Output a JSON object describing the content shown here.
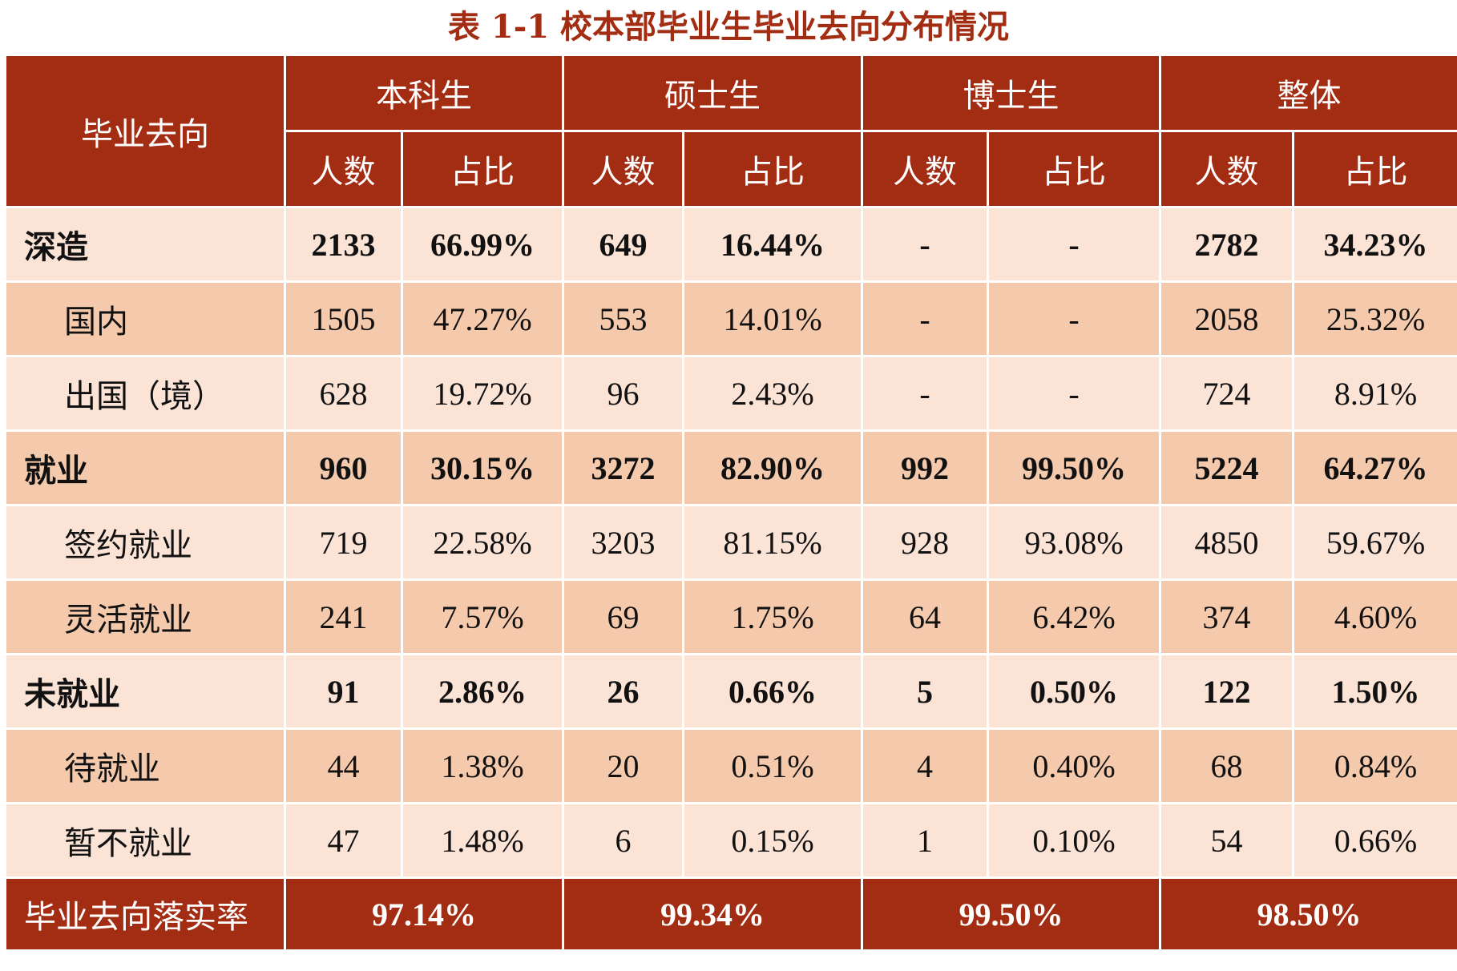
{
  "title": "表 1-1 校本部毕业生毕业去向分布情况",
  "header": {
    "row_label": "毕业去向",
    "groups": [
      "本科生",
      "硕士生",
      "博士生",
      "整体"
    ],
    "sub": [
      "人数",
      "占比"
    ]
  },
  "rows": [
    {
      "label": "深造",
      "level": "main",
      "cells": [
        "2133",
        "66.99%",
        "649",
        "16.44%",
        "-",
        "-",
        "2782",
        "34.23%"
      ]
    },
    {
      "label": "国内",
      "level": "sub",
      "cells": [
        "1505",
        "47.27%",
        "553",
        "14.01%",
        "-",
        "-",
        "2058",
        "25.32%"
      ]
    },
    {
      "label": "出国（境）",
      "level": "sub",
      "cells": [
        "628",
        "19.72%",
        "96",
        "2.43%",
        "-",
        "-",
        "724",
        "8.91%"
      ]
    },
    {
      "label": "就业",
      "level": "main",
      "cells": [
        "960",
        "30.15%",
        "3272",
        "82.90%",
        "992",
        "99.50%",
        "5224",
        "64.27%"
      ]
    },
    {
      "label": "签约就业",
      "level": "sub",
      "cells": [
        "719",
        "22.58%",
        "3203",
        "81.15%",
        "928",
        "93.08%",
        "4850",
        "59.67%"
      ]
    },
    {
      "label": "灵活就业",
      "level": "sub",
      "cells": [
        "241",
        "7.57%",
        "69",
        "1.75%",
        "64",
        "6.42%",
        "374",
        "4.60%"
      ]
    },
    {
      "label": "未就业",
      "level": "main",
      "cells": [
        "91",
        "2.86%",
        "26",
        "0.66%",
        "5",
        "0.50%",
        "122",
        "1.50%"
      ]
    },
    {
      "label": "待就业",
      "level": "sub",
      "cells": [
        "44",
        "1.38%",
        "20",
        "0.51%",
        "4",
        "0.40%",
        "68",
        "0.84%"
      ]
    },
    {
      "label": "暂不就业",
      "level": "sub",
      "cells": [
        "47",
        "1.48%",
        "6",
        "0.15%",
        "1",
        "0.10%",
        "54",
        "0.66%"
      ]
    }
  ],
  "footer": {
    "label": "毕业去向落实率",
    "values": [
      "97.14%",
      "99.34%",
      "99.50%",
      "98.50%"
    ]
  },
  "colors": {
    "header": "#A32D12",
    "row_light": "#FBE3D6",
    "row_dark": "#F5C9AB"
  }
}
